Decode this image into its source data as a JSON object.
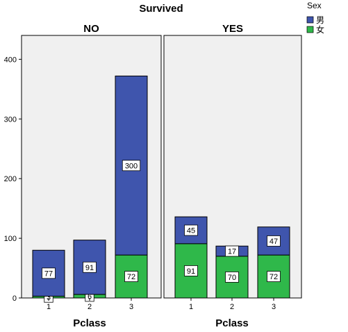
{
  "chart_data": {
    "type": "bar",
    "stacked": true,
    "title": "Survived",
    "xlabel": "Pclass",
    "categories": [
      "1",
      "2",
      "3"
    ],
    "ylim": [
      0,
      440
    ],
    "yticks": [
      0,
      100,
      200,
      300,
      400
    ],
    "grid": false,
    "legend": {
      "title": "Sex",
      "placement": "top-right",
      "entries": [
        {
          "name": "男",
          "color": "#3f55ad"
        },
        {
          "name": "女",
          "color": "#2fb84a"
        }
      ]
    },
    "panels": [
      {
        "label": "NO",
        "series": [
          {
            "name": "女",
            "color": "#2fb84a",
            "values": [
              3,
              6,
              72
            ]
          },
          {
            "name": "男",
            "color": "#3f55ad",
            "values": [
              77,
              91,
              300
            ]
          }
        ]
      },
      {
        "label": "YES",
        "series": [
          {
            "name": "女",
            "color": "#2fb84a",
            "values": [
              91,
              70,
              72
            ]
          },
          {
            "name": "男",
            "color": "#3f55ad",
            "values": [
              45,
              17,
              47
            ]
          }
        ]
      }
    ],
    "panel_background": "#f0f0f0"
  }
}
